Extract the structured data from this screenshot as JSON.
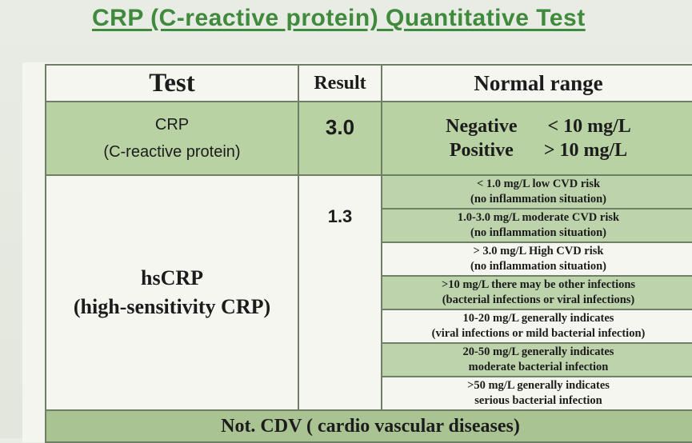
{
  "title": "CRP (C-reactive protein) Quantitative Test",
  "headers": {
    "test": "Test",
    "result": "Result",
    "normal_range": "Normal range"
  },
  "crp": {
    "name_line1": "CRP",
    "name_line2": "(C-reactive protein)",
    "result": "3.0",
    "negative_label": "Negative",
    "negative_value": "< 10 mg/L",
    "positive_label": "Positive",
    "positive_value": "> 10 mg/L"
  },
  "hscrp": {
    "name_line1": "hsCRP",
    "name_line2": "(high-sensitivity CRP)",
    "result": "1.3",
    "ranges": [
      {
        "line1": "< 1.0  mg/L low CVD risk",
        "line2": "(no inflammation situation)"
      },
      {
        "line1": "1.0-3.0  mg/L moderate  CVD risk",
        "line2": "(no inflammation situation)"
      },
      {
        "line1": "> 3.0 mg/L  High  CVD risk",
        "line2": "(no inflammation situation)"
      },
      {
        "line1": ">10  mg/L there may be other infections",
        "line2": "(bacterial infections or viral infections)"
      },
      {
        "line1": "10-20  mg/L generally indicates",
        "line2": "(viral infections or mild bacterial infection)"
      },
      {
        "line1": "20-50  mg/L generally indicates",
        "line2": "moderate bacterial infection"
      },
      {
        "line1": ">50 mg/L  generally indicates",
        "line2": "serious bacterial infection"
      }
    ]
  },
  "footer": "Not. CDV ( cardio vascular diseases)"
}
